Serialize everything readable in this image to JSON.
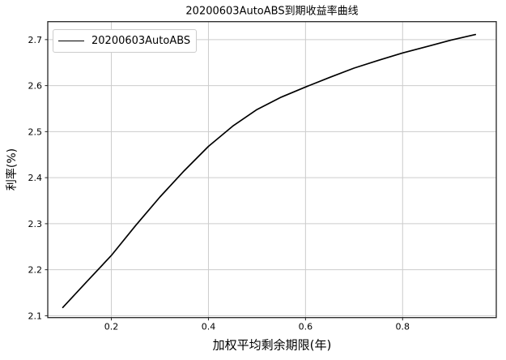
{
  "chart_data": {
    "type": "line",
    "title": "20200603AutoABS到期收益率曲线",
    "xlabel": "加权平均剩余期限(年)",
    "ylabel": "利率(%)",
    "xlim": [
      0.069,
      0.993
    ],
    "ylim": [
      2.096,
      2.739
    ],
    "grid": true,
    "legend_position": "upper left",
    "xticks": [
      {
        "value": 0.2,
        "label": "0.2"
      },
      {
        "value": 0.4,
        "label": "0.4"
      },
      {
        "value": 0.6,
        "label": "0.6"
      },
      {
        "value": 0.8,
        "label": "0.8"
      }
    ],
    "yticks": [
      {
        "value": 2.1,
        "label": "2.1"
      },
      {
        "value": 2.2,
        "label": "2.2"
      },
      {
        "value": 2.3,
        "label": "2.3"
      },
      {
        "value": 2.4,
        "label": "2.4"
      },
      {
        "value": 2.5,
        "label": "2.5"
      },
      {
        "value": 2.6,
        "label": "2.6"
      },
      {
        "value": 2.7,
        "label": "2.7"
      }
    ],
    "series": [
      {
        "name": "20200603AutoABS",
        "color": "#000000",
        "points": [
          [
            0.1,
            2.118
          ],
          [
            0.15,
            2.175
          ],
          [
            0.2,
            2.231
          ],
          [
            0.25,
            2.296
          ],
          [
            0.3,
            2.358
          ],
          [
            0.35,
            2.415
          ],
          [
            0.4,
            2.468
          ],
          [
            0.45,
            2.512
          ],
          [
            0.5,
            2.548
          ],
          [
            0.55,
            2.575
          ],
          [
            0.6,
            2.597
          ],
          [
            0.65,
            2.618
          ],
          [
            0.7,
            2.638
          ],
          [
            0.75,
            2.655
          ],
          [
            0.8,
            2.671
          ],
          [
            0.85,
            2.685
          ],
          [
            0.9,
            2.699
          ],
          [
            0.95,
            2.711
          ]
        ]
      }
    ],
    "colors": {
      "line": "#000000",
      "grid": "#cccccc",
      "axis": "#262626",
      "background": "#ffffff",
      "legend_border": "#cccccc"
    }
  }
}
